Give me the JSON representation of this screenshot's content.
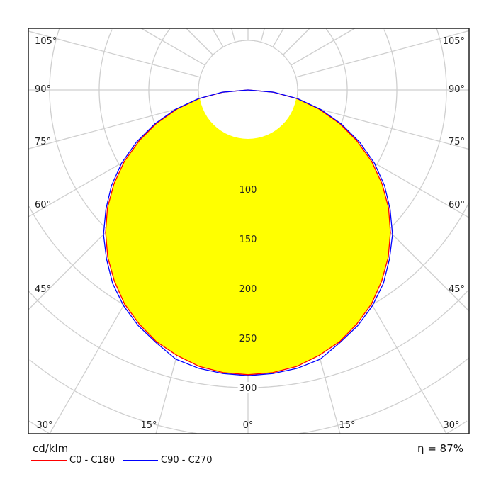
{
  "chart_data": {
    "type": "polar",
    "unit_label": "cd/klm",
    "efficiency_label": "η = 87%",
    "radial_ticks": [
      100,
      150,
      200,
      250,
      300
    ],
    "radial_grid_step": 50,
    "angle_ticks": [
      "0°",
      "15°",
      "30°",
      "45°",
      "60°",
      "75°",
      "90°",
      "105°"
    ],
    "angles_deg": [
      0,
      5,
      10,
      15,
      20,
      25,
      30,
      35,
      40,
      45,
      50,
      55,
      60,
      65,
      70,
      75,
      80,
      85,
      90
    ],
    "series": [
      {
        "name": "C0 - C180",
        "color": "#ff0000",
        "values": [
          287,
          286,
          283,
          277,
          270,
          260,
          249,
          235,
          220,
          203,
          185,
          165,
          144,
          121,
          98,
          74,
          50,
          25,
          0
        ]
      },
      {
        "name": "C90 - C270",
        "color": "#0000ff",
        "values": [
          288,
          287,
          285,
          281,
          271,
          262,
          251,
          238,
          222,
          206,
          187,
          168,
          147,
          124,
          100,
          76,
          51,
          26,
          0
        ]
      }
    ],
    "fill_color": "#ffff00",
    "grid": true
  }
}
